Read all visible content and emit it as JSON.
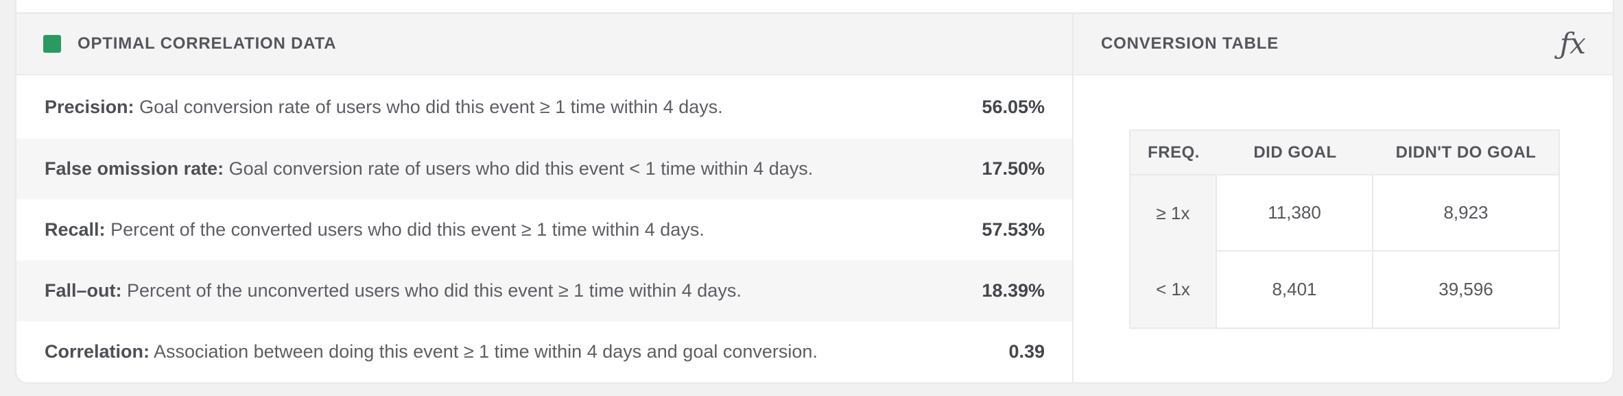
{
  "left_panel": {
    "title": "OPTIMAL CORRELATION DATA",
    "legend_color": "#2b9a62",
    "rows": [
      {
        "label": "Precision:",
        "description": "Goal conversion rate of users who did this event ≥ 1 time within 4 days.",
        "value": "56.05%"
      },
      {
        "label": "False omission rate:",
        "description": "Goal conversion rate of users who did this event < 1 time within 4 days.",
        "value": "17.50%"
      },
      {
        "label": "Recall:",
        "description": "Percent of the converted users who did this event ≥ 1 time within 4 days.",
        "value": "57.53%"
      },
      {
        "label": "Fall–out:",
        "description": "Percent of the unconverted users who did this event ≥ 1 time within 4 days.",
        "value": "18.39%"
      },
      {
        "label": "Correlation:",
        "description": "Association between doing this event ≥ 1 time within 4 days and goal conversion.",
        "value": "0.39"
      }
    ]
  },
  "right_panel": {
    "title": "CONVERSION TABLE",
    "fx_icon": "ƒx",
    "table": {
      "headers": [
        "FREQ.",
        "DID GOAL",
        "DIDN'T DO GOAL"
      ],
      "rows": [
        {
          "freq": "≥ 1x",
          "did_goal": "11,380",
          "didnt_do_goal": "8,923"
        },
        {
          "freq": "< 1x",
          "did_goal": "8,401",
          "didnt_do_goal": "39,596"
        }
      ]
    }
  }
}
